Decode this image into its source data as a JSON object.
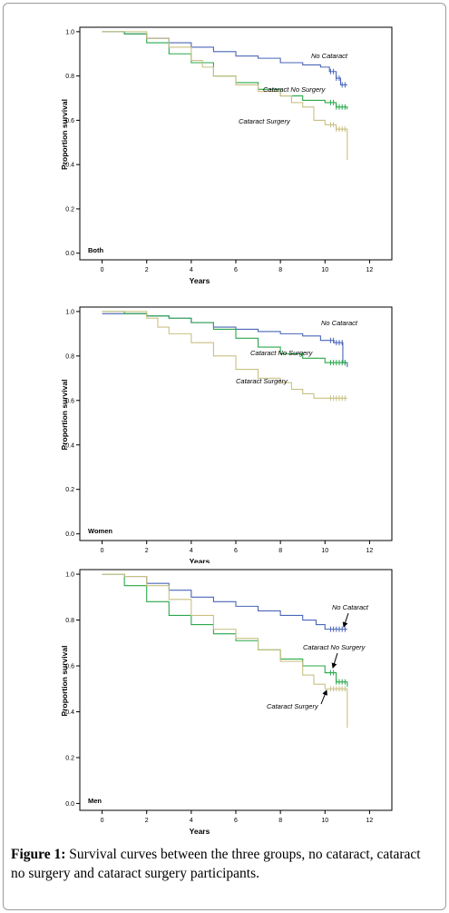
{
  "figure": {
    "caption_label": "Figure 1:",
    "caption_text": " Survival curves between the three groups, no cataract, cataract no surgery and cataract surgery participants."
  },
  "colors": {
    "no_cataract": "#4a66b8",
    "cataract_no_surgery": "#2aa84a",
    "cataract_surgery": "#c9c083"
  },
  "chart_data": [
    {
      "type": "line",
      "panel_label": "Both",
      "xlabel": "Years",
      "ylabel": "Proportion survival",
      "xlim": [
        -1,
        13
      ],
      "ylim": [
        -0.03,
        1.02
      ],
      "xticks": [
        "0",
        "2",
        "4",
        "6",
        "8",
        "10",
        "12"
      ],
      "yticks": [
        "0.0",
        "0.2",
        "0.4",
        "0.6",
        "0.8",
        "1.0"
      ],
      "annotations": [
        "No Cataract",
        "Cataract No Surgery",
        "Cataract Surgery"
      ],
      "series": [
        {
          "name": "No Cataract",
          "x": [
            0,
            1,
            2,
            3,
            4,
            5,
            6,
            7,
            8,
            9,
            9.8,
            10.2,
            10.5,
            10.7,
            11.0
          ],
          "y": [
            1.0,
            0.99,
            0.97,
            0.95,
            0.93,
            0.91,
            0.89,
            0.88,
            0.86,
            0.85,
            0.84,
            0.82,
            0.79,
            0.76,
            0.76
          ]
        },
        {
          "name": "Cataract No Surgery",
          "x": [
            0,
            1,
            2,
            3,
            4,
            5,
            6,
            7,
            8,
            9,
            10,
            10.5,
            11.0
          ],
          "y": [
            1.0,
            0.99,
            0.95,
            0.9,
            0.86,
            0.8,
            0.77,
            0.74,
            0.71,
            0.69,
            0.68,
            0.66,
            0.65
          ]
        },
        {
          "name": "Cataract Surgery",
          "x": [
            0,
            1,
            2,
            3,
            4,
            4.5,
            5,
            6,
            7,
            8,
            8.5,
            9,
            9.5,
            10,
            10.5,
            10.9,
            11.0,
            11.0
          ],
          "y": [
            1.0,
            1.0,
            0.97,
            0.93,
            0.87,
            0.84,
            0.8,
            0.76,
            0.73,
            0.71,
            0.68,
            0.66,
            0.6,
            0.58,
            0.56,
            0.56,
            0.55,
            0.42
          ]
        }
      ]
    },
    {
      "type": "line",
      "panel_label": "Women",
      "xlabel": "Years",
      "ylabel": "Proportion survival",
      "xlim": [
        -1,
        13
      ],
      "ylim": [
        -0.03,
        1.02
      ],
      "xticks": [
        "0",
        "2",
        "4",
        "6",
        "8",
        "10",
        "12"
      ],
      "yticks": [
        "0.0",
        "0.2",
        "0.4",
        "0.6",
        "0.8",
        "1.0"
      ],
      "annotations": [
        "No Cataract",
        "Cataract No Surgery",
        "Cataract Surgery"
      ],
      "series": [
        {
          "name": "No Cataract",
          "x": [
            0,
            1,
            2,
            3,
            4,
            5,
            6,
            7,
            8,
            9,
            9.8,
            10.4,
            10.8,
            11.0
          ],
          "y": [
            0.99,
            0.99,
            0.98,
            0.97,
            0.95,
            0.93,
            0.92,
            0.91,
            0.9,
            0.89,
            0.87,
            0.86,
            0.77,
            0.75
          ]
        },
        {
          "name": "Cataract No Surgery",
          "x": [
            0,
            1,
            2,
            3,
            4,
            5,
            6,
            7,
            8,
            9,
            10,
            10.5,
            11.0
          ],
          "y": [
            1.0,
            0.99,
            0.98,
            0.97,
            0.95,
            0.92,
            0.88,
            0.84,
            0.81,
            0.79,
            0.77,
            0.77,
            0.77
          ]
        },
        {
          "name": "Cataract Surgery",
          "x": [
            0,
            1,
            2,
            2.5,
            3,
            4,
            5,
            6,
            7,
            8,
            8.5,
            9,
            9.5,
            10,
            11.0
          ],
          "y": [
            1.0,
            1.0,
            0.97,
            0.93,
            0.9,
            0.86,
            0.8,
            0.74,
            0.7,
            0.68,
            0.65,
            0.63,
            0.61,
            0.61,
            0.61
          ]
        }
      ]
    },
    {
      "type": "line",
      "panel_label": "Men",
      "xlabel": "Years",
      "ylabel": "Proportion survival",
      "xlim": [
        -1,
        13
      ],
      "ylim": [
        -0.03,
        1.02
      ],
      "xticks": [
        "0",
        "2",
        "4",
        "6",
        "8",
        "10",
        "12"
      ],
      "yticks": [
        "0.0",
        "0.2",
        "0.4",
        "0.6",
        "0.8",
        "1.0"
      ],
      "annotations": [
        "No Cataract",
        "Cataract No Surgery",
        "Cataract Surgery"
      ],
      "series": [
        {
          "name": "No Cataract",
          "x": [
            0,
            1,
            2,
            3,
            4,
            5,
            6,
            7,
            8,
            9,
            9.6,
            10.0,
            11.0
          ],
          "y": [
            1.0,
            0.99,
            0.96,
            0.93,
            0.9,
            0.88,
            0.86,
            0.84,
            0.82,
            0.8,
            0.78,
            0.76,
            0.76
          ]
        },
        {
          "name": "Cataract No Surgery",
          "x": [
            0,
            1,
            2,
            3,
            4,
            5,
            6,
            7,
            8,
            9,
            10,
            10.5,
            11.0
          ],
          "y": [
            1.0,
            0.95,
            0.88,
            0.82,
            0.78,
            0.74,
            0.71,
            0.67,
            0.63,
            0.6,
            0.57,
            0.53,
            0.51
          ]
        },
        {
          "name": "Cataract Surgery",
          "x": [
            0,
            1,
            2,
            3,
            4,
            5,
            6,
            7,
            8,
            9,
            9.5,
            10,
            11.0,
            11.0
          ],
          "y": [
            1.0,
            0.99,
            0.95,
            0.89,
            0.82,
            0.76,
            0.72,
            0.67,
            0.62,
            0.56,
            0.52,
            0.5,
            0.5,
            0.33
          ]
        }
      ]
    }
  ]
}
